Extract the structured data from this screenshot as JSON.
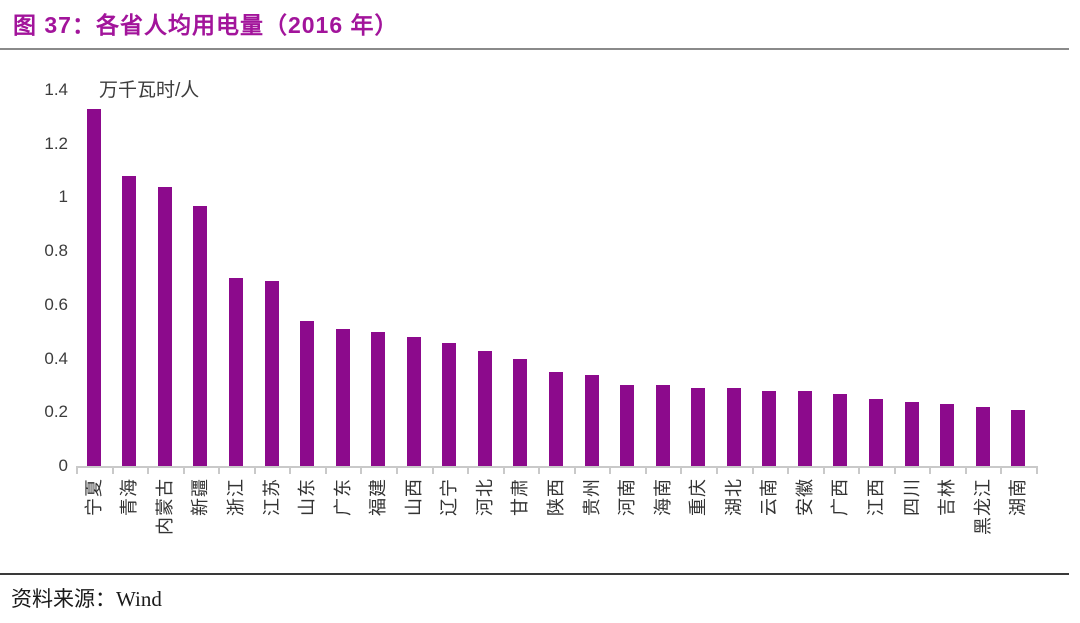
{
  "header": {
    "title": "图 37：各省人均用电量（2016 年）"
  },
  "footer": {
    "source": "资料来源：Wind"
  },
  "chart_data": {
    "type": "bar",
    "title": "图 37：各省人均用电量（2016 年）",
    "unit_label": "万千瓦时/人",
    "categories": [
      "宁夏",
      "青海",
      "内蒙古",
      "新疆",
      "浙江",
      "江苏",
      "山东",
      "广东",
      "福建",
      "山西",
      "辽宁",
      "河北",
      "甘肃",
      "陕西",
      "贵州",
      "河南",
      "海南",
      "重庆",
      "湖北",
      "云南",
      "安徽",
      "广西",
      "江西",
      "四川",
      "吉林",
      "黑龙江",
      "湖南"
    ],
    "values": [
      1.33,
      1.08,
      1.04,
      0.97,
      0.7,
      0.69,
      0.54,
      0.51,
      0.5,
      0.48,
      0.46,
      0.43,
      0.4,
      0.35,
      0.34,
      0.3,
      0.3,
      0.29,
      0.29,
      0.28,
      0.28,
      0.27,
      0.25,
      0.24,
      0.23,
      0.22,
      0.21
    ],
    "ylim": [
      0,
      1.4
    ],
    "ytick_labels": [
      "0",
      "0.2",
      "0.4",
      "0.6",
      "0.8",
      "1",
      "1.2",
      "1.4"
    ],
    "xlabel": "",
    "ylabel": "万千瓦时/人",
    "grid": false,
    "legend_position": "none",
    "bar_color": "#8C0A8C",
    "source": "资料来源：Wind",
    "colors": {
      "title": "#A2149B",
      "axis_text": "#3C3C3C",
      "category_text": "#333333",
      "axis_line": "#C9C9C9",
      "title_rule": "#8A8A8A",
      "source_rule": "#3A3A3A",
      "source_text": "#1A1A1A"
    }
  }
}
